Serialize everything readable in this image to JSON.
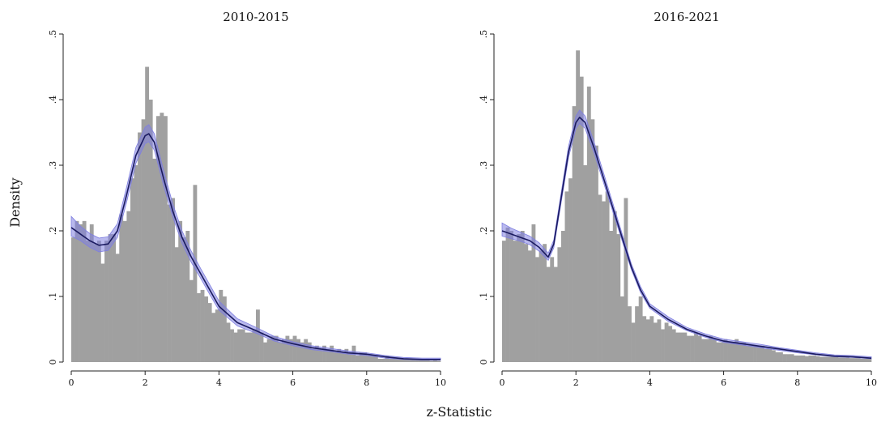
{
  "figure": {
    "xlabel": "z-Statistic",
    "ylabel": "Density"
  },
  "colors": {
    "bar": "#a0a0a0",
    "ci_band": "#7f7fe0",
    "line": "#1a1a60"
  },
  "chart_data": [
    {
      "type": "bar",
      "title": "2010-2015",
      "xlim": [
        0,
        10
      ],
      "ylim": [
        0,
        0.5
      ],
      "xticks": [
        "0",
        "2",
        "4",
        "6",
        "8",
        "10"
      ],
      "yticks": [
        "0",
        ".1",
        ".2",
        ".3",
        ".4",
        ".5"
      ],
      "bin_width": 0.1,
      "values": [
        0.19,
        0.215,
        0.21,
        0.215,
        0.185,
        0.21,
        0.18,
        0.185,
        0.15,
        0.185,
        0.195,
        0.195,
        0.165,
        0.225,
        0.215,
        0.23,
        0.28,
        0.3,
        0.35,
        0.37,
        0.45,
        0.4,
        0.31,
        0.375,
        0.38,
        0.375,
        0.24,
        0.25,
        0.175,
        0.215,
        0.19,
        0.2,
        0.125,
        0.27,
        0.105,
        0.11,
        0.1,
        0.09,
        0.075,
        0.08,
        0.11,
        0.1,
        0.06,
        0.05,
        0.045,
        0.05,
        0.05,
        0.045,
        0.045,
        0.05,
        0.08,
        0.045,
        0.03,
        0.035,
        0.04,
        0.04,
        0.03,
        0.035,
        0.04,
        0.035,
        0.04,
        0.035,
        0.03,
        0.035,
        0.03,
        0.02,
        0.025,
        0.02,
        0.025,
        0.02,
        0.025,
        0.015,
        0.02,
        0.015,
        0.02,
        0.015,
        0.025,
        0.01,
        0.015,
        0.015,
        0.01,
        0.01,
        0.01,
        0.005,
        0.005,
        0.01,
        0.005,
        0.005,
        0.005,
        0.005,
        0.005,
        0.005,
        0.005,
        0.003,
        0.005,
        0.003,
        0.005,
        0.002,
        0.003,
        0.002
      ],
      "series": [
        {
          "kind": "density",
          "x": [
            0,
            0.25,
            0.5,
            0.75,
            1.0,
            1.25,
            1.5,
            1.75,
            2.0,
            2.1,
            2.25,
            2.5,
            2.75,
            3.0,
            3.25,
            3.5,
            3.75,
            4.0,
            4.5,
            5.0,
            5.5,
            6.0,
            6.5,
            7.0,
            7.5,
            8.0,
            8.5,
            9.0,
            9.5,
            10.0
          ],
          "y": [
            0.205,
            0.195,
            0.185,
            0.178,
            0.18,
            0.2,
            0.255,
            0.315,
            0.345,
            0.348,
            0.335,
            0.28,
            0.23,
            0.19,
            0.16,
            0.135,
            0.11,
            0.085,
            0.06,
            0.048,
            0.035,
            0.028,
            0.022,
            0.018,
            0.014,
            0.012,
            0.008,
            0.005,
            0.004,
            0.004
          ],
          "ci_lower": [
            0.192,
            0.185,
            0.175,
            0.168,
            0.17,
            0.19,
            0.244,
            0.303,
            0.333,
            0.336,
            0.323,
            0.269,
            0.221,
            0.181,
            0.152,
            0.128,
            0.103,
            0.079,
            0.055,
            0.044,
            0.032,
            0.025,
            0.019,
            0.016,
            0.012,
            0.01,
            0.006,
            0.004,
            0.003,
            0.003
          ],
          "ci_upper": [
            0.222,
            0.207,
            0.196,
            0.189,
            0.191,
            0.211,
            0.267,
            0.327,
            0.358,
            0.362,
            0.348,
            0.292,
            0.241,
            0.2,
            0.169,
            0.143,
            0.118,
            0.093,
            0.066,
            0.053,
            0.039,
            0.031,
            0.025,
            0.021,
            0.017,
            0.014,
            0.01,
            0.007,
            0.006,
            0.006
          ]
        }
      ]
    },
    {
      "type": "bar",
      "title": "2016-2021",
      "xlim": [
        0,
        10
      ],
      "ylim": [
        0,
        0.5
      ],
      "xticks": [
        "0",
        "2",
        "4",
        "6",
        "8",
        "10"
      ],
      "yticks": [
        "0",
        ".1",
        ".2",
        ".3",
        ".4",
        ".5"
      ],
      "bin_width": 0.1,
      "values": [
        0.185,
        0.205,
        0.2,
        0.185,
        0.195,
        0.2,
        0.18,
        0.17,
        0.21,
        0.16,
        0.17,
        0.18,
        0.145,
        0.16,
        0.145,
        0.175,
        0.2,
        0.26,
        0.28,
        0.39,
        0.475,
        0.435,
        0.3,
        0.42,
        0.37,
        0.33,
        0.255,
        0.245,
        0.26,
        0.2,
        0.23,
        0.195,
        0.1,
        0.25,
        0.085,
        0.06,
        0.085,
        0.1,
        0.07,
        0.065,
        0.07,
        0.06,
        0.065,
        0.05,
        0.06,
        0.055,
        0.05,
        0.045,
        0.045,
        0.045,
        0.04,
        0.04,
        0.045,
        0.04,
        0.035,
        0.035,
        0.04,
        0.035,
        0.03,
        0.03,
        0.035,
        0.03,
        0.03,
        0.035,
        0.03,
        0.03,
        0.025,
        0.025,
        0.025,
        0.025,
        0.025,
        0.02,
        0.02,
        0.018,
        0.015,
        0.015,
        0.012,
        0.012,
        0.012,
        0.01,
        0.01,
        0.01,
        0.009,
        0.01,
        0.01,
        0.009,
        0.008,
        0.008,
        0.008,
        0.008,
        0.008,
        0.007,
        0.007,
        0.007,
        0.006,
        0.006,
        0.006,
        0.005,
        0.005,
        0.005
      ],
      "series": [
        {
          "kind": "density",
          "x": [
            0,
            0.25,
            0.5,
            0.75,
            1.0,
            1.25,
            1.4,
            1.6,
            1.8,
            2.0,
            2.1,
            2.25,
            2.5,
            2.75,
            3.0,
            3.25,
            3.5,
            3.75,
            4.0,
            4.5,
            5.0,
            5.5,
            6.0,
            6.5,
            7.0,
            7.5,
            8.0,
            8.5,
            9.0,
            9.5,
            10.0
          ],
          "y": [
            0.2,
            0.195,
            0.19,
            0.185,
            0.175,
            0.16,
            0.18,
            0.25,
            0.32,
            0.365,
            0.373,
            0.365,
            0.325,
            0.28,
            0.235,
            0.19,
            0.145,
            0.11,
            0.085,
            0.065,
            0.05,
            0.04,
            0.032,
            0.028,
            0.024,
            0.02,
            0.016,
            0.012,
            0.009,
            0.008,
            0.006
          ],
          "ci_lower": [
            0.192,
            0.188,
            0.184,
            0.179,
            0.169,
            0.155,
            0.174,
            0.243,
            0.312,
            0.356,
            0.364,
            0.356,
            0.317,
            0.273,
            0.229,
            0.185,
            0.141,
            0.106,
            0.082,
            0.062,
            0.048,
            0.038,
            0.03,
            0.026,
            0.022,
            0.018,
            0.014,
            0.011,
            0.008,
            0.007,
            0.005
          ],
          "ci_upper": [
            0.212,
            0.204,
            0.198,
            0.192,
            0.182,
            0.166,
            0.186,
            0.258,
            0.329,
            0.375,
            0.384,
            0.375,
            0.334,
            0.288,
            0.242,
            0.196,
            0.15,
            0.115,
            0.089,
            0.069,
            0.053,
            0.043,
            0.035,
            0.031,
            0.027,
            0.022,
            0.018,
            0.014,
            0.011,
            0.01,
            0.008
          ]
        }
      ]
    }
  ]
}
